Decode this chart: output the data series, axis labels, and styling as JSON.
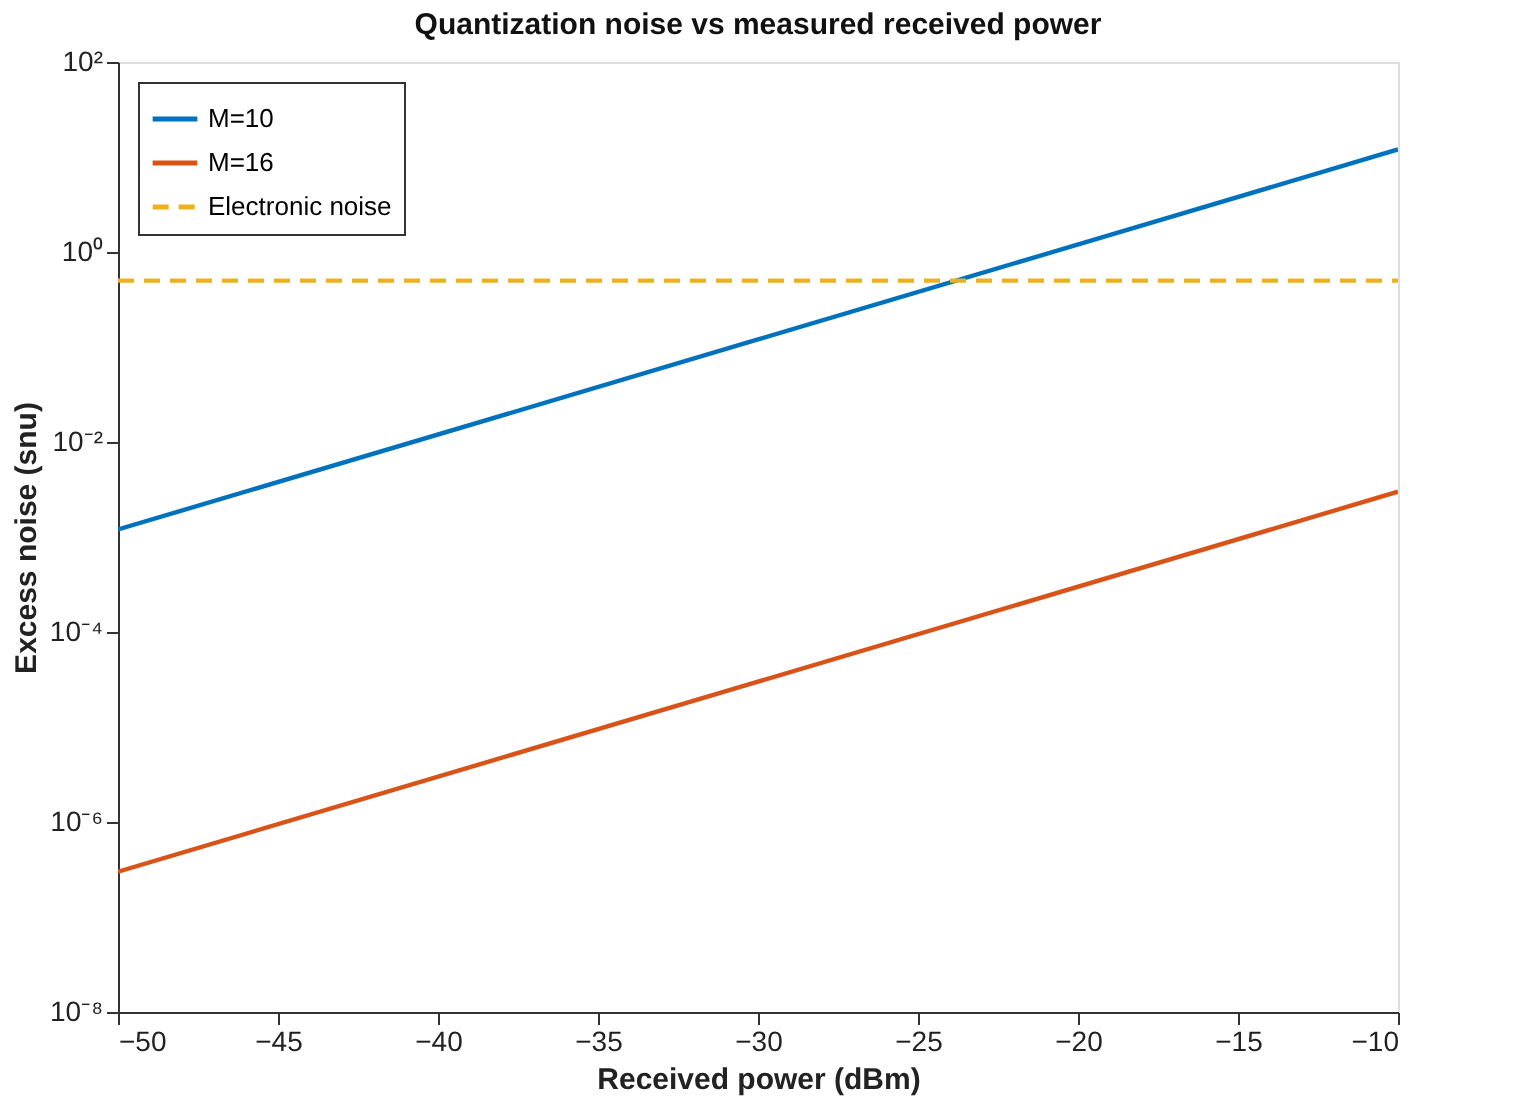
{
  "chart_data": {
    "type": "line",
    "title": "Quantization noise vs measured received power",
    "xlabel": "Received power (dBm)",
    "ylabel": "Excess noise (snu)",
    "x": [
      -50,
      -30,
      -10
    ],
    "series": [
      {
        "name": "M=10",
        "color": "#0072bd",
        "values": [
          0.0012,
          0.12,
          12
        ]
      },
      {
        "name": "M=16",
        "color": "#d95319",
        "values": [
          3e-07,
          3e-05,
          0.003
        ]
      },
      {
        "name": "Electronic noise",
        "color": "#edb120",
        "values": [
          0.5,
          0.5,
          0.5
        ],
        "line_style": "dashed"
      }
    ],
    "log": "y",
    "xlim": [
      -50,
      -10
    ],
    "xticks": [
      -50,
      -45,
      -40,
      -35,
      -30,
      -25,
      -20,
      -15,
      -10
    ],
    "ylim": [
      1e-08,
      100
    ],
    "yticks": [
      {
        "value": 1e-08,
        "label": "10⁻⁸"
      },
      {
        "value": 1e-06,
        "label": "10⁻⁶"
      },
      {
        "value": 0.0001,
        "label": "10⁻⁴"
      },
      {
        "value": 0.01,
        "label": "10⁻²"
      },
      {
        "value": 1,
        "label": "10⁰"
      },
      {
        "value": 100,
        "label": "10²"
      }
    ],
    "grid": false,
    "legend": "top left",
    "marker": "none",
    "line_style": "solid"
  }
}
